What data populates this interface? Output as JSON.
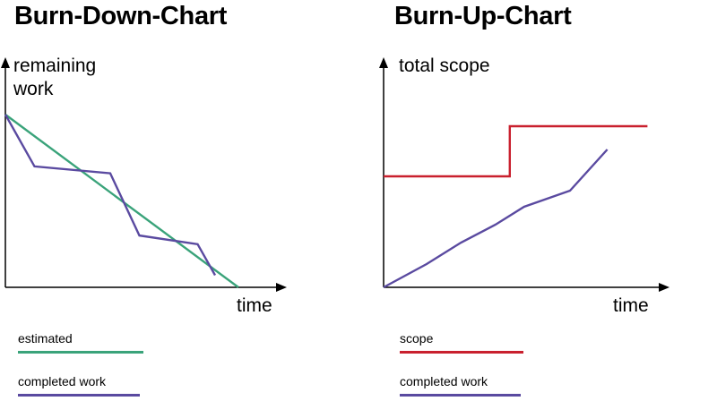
{
  "chart_data": [
    {
      "type": "line",
      "title": "Burn-Down-Chart",
      "ylabel": "remaining work",
      "xlabel": "time",
      "grid": false,
      "legend_placement": "bottom-left",
      "x": [
        0,
        1,
        2,
        3,
        4,
        5,
        6,
        7,
        8
      ],
      "series": [
        {
          "name": "estimated",
          "color": "#3aa37a",
          "x": [
            0,
            8
          ],
          "values": [
            100,
            0
          ]
        },
        {
          "name": "completed work",
          "color": "#5a4aa0",
          "x": [
            0,
            1,
            3.6,
            4.6,
            6.6,
            7.2
          ],
          "values": [
            100,
            70,
            66,
            30,
            25,
            7
          ]
        }
      ],
      "ylim": [
        0,
        100
      ]
    },
    {
      "type": "line",
      "title": "Burn-Up-Chart",
      "ylabel": "total scope",
      "xlabel": "time",
      "grid": false,
      "legend_placement": "bottom-left",
      "series": [
        {
          "name": "scope",
          "color": "#c9202e",
          "x": [
            0,
            4.4,
            4.4,
            9.2
          ],
          "values": [
            62,
            62,
            90,
            90
          ]
        },
        {
          "name": "completed work",
          "color": "#5a4aa0",
          "x": [
            0,
            1.5,
            2.7,
            3.9,
            4.9,
            6.5,
            7.8
          ],
          "values": [
            0,
            13,
            25,
            35,
            45,
            54,
            77
          ]
        }
      ],
      "ylim": [
        0,
        100
      ]
    }
  ],
  "legend": {
    "left": [
      {
        "label": "estimated",
        "color": "#3aa37a"
      },
      {
        "label": "completed work",
        "color": "#5a4aa0"
      }
    ],
    "right": [
      {
        "label": "scope",
        "color": "#c9202e"
      },
      {
        "label": "completed work",
        "color": "#5a4aa0"
      }
    ]
  }
}
